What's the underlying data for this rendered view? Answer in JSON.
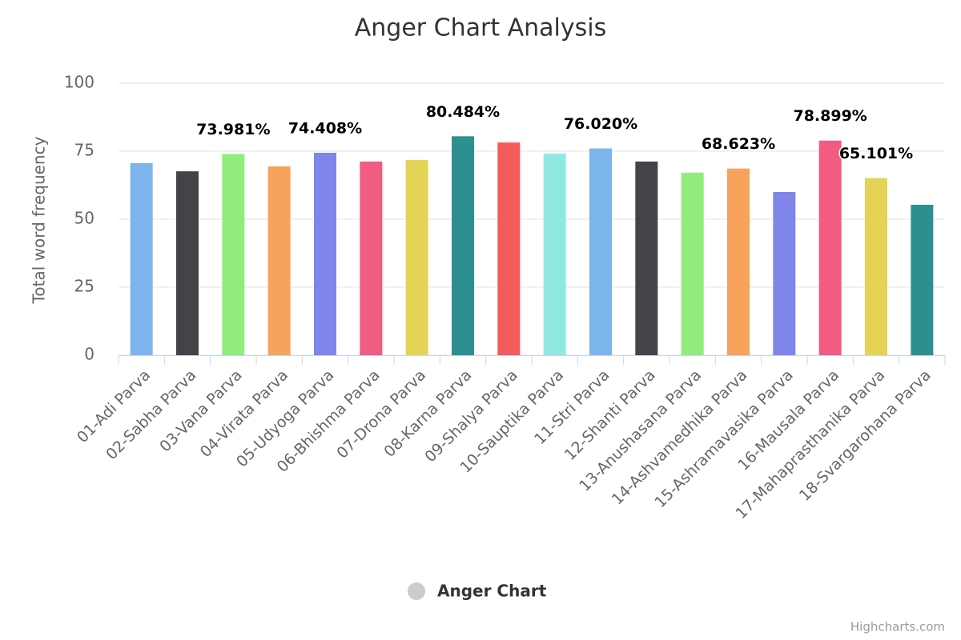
{
  "chart_data": {
    "type": "bar",
    "title": "Anger Chart Analysis",
    "y_axis_label": "Total word frequency",
    "categories": [
      "01-Adi Parva",
      "02-Sabha Parva",
      "03-Vana Parva",
      "04-Virata Parva",
      "05-Udyoga Parva",
      "06-Bhishma Parva",
      "07-Drona Parva",
      "08-Karna Parva",
      "09-Shalya Parva",
      "10-Sauptika Parva",
      "11-Stri Parva",
      "12-Shanti Parva",
      "13-Anushasana Parva",
      "14-Ashvamedhika Parva",
      "15-Ashramavasika Parva",
      "16-Mausala Parva",
      "17-Mahaprasthanika Parva",
      "18-Svargarohana Parva"
    ],
    "series": [
      {
        "name": "Anger Chart",
        "colors": [
          "#7cb5ec",
          "#434348",
          "#90ed7d",
          "#f7a35c",
          "#8085e9",
          "#f15c80",
          "#e4d354",
          "#2b908f",
          "#f45b5b",
          "#91e8e1",
          "#7cb5ec",
          "#434348",
          "#90ed7d",
          "#f7a35c",
          "#8085e9",
          "#f15c80",
          "#e4d354",
          "#2b908f"
        ],
        "values": [
          70.6,
          67.6,
          73.981,
          69.4,
          74.408,
          71.2,
          71.8,
          80.484,
          78.2,
          74.1,
          76.02,
          71.2,
          67.1,
          68.623,
          60.0,
          78.899,
          65.101,
          55.3
        ],
        "value_labels": [
          null,
          null,
          "73.981%",
          null,
          "74.408%",
          null,
          null,
          "80.484%",
          null,
          null,
          "76.020%",
          null,
          null,
          "68.623%",
          null,
          "78.899%",
          "65.101%",
          null
        ]
      }
    ],
    "ylim": [
      0,
      100
    ],
    "yticks": [
      0,
      25,
      50,
      75,
      100
    ],
    "grid": true,
    "credits": "Highcharts.com"
  }
}
